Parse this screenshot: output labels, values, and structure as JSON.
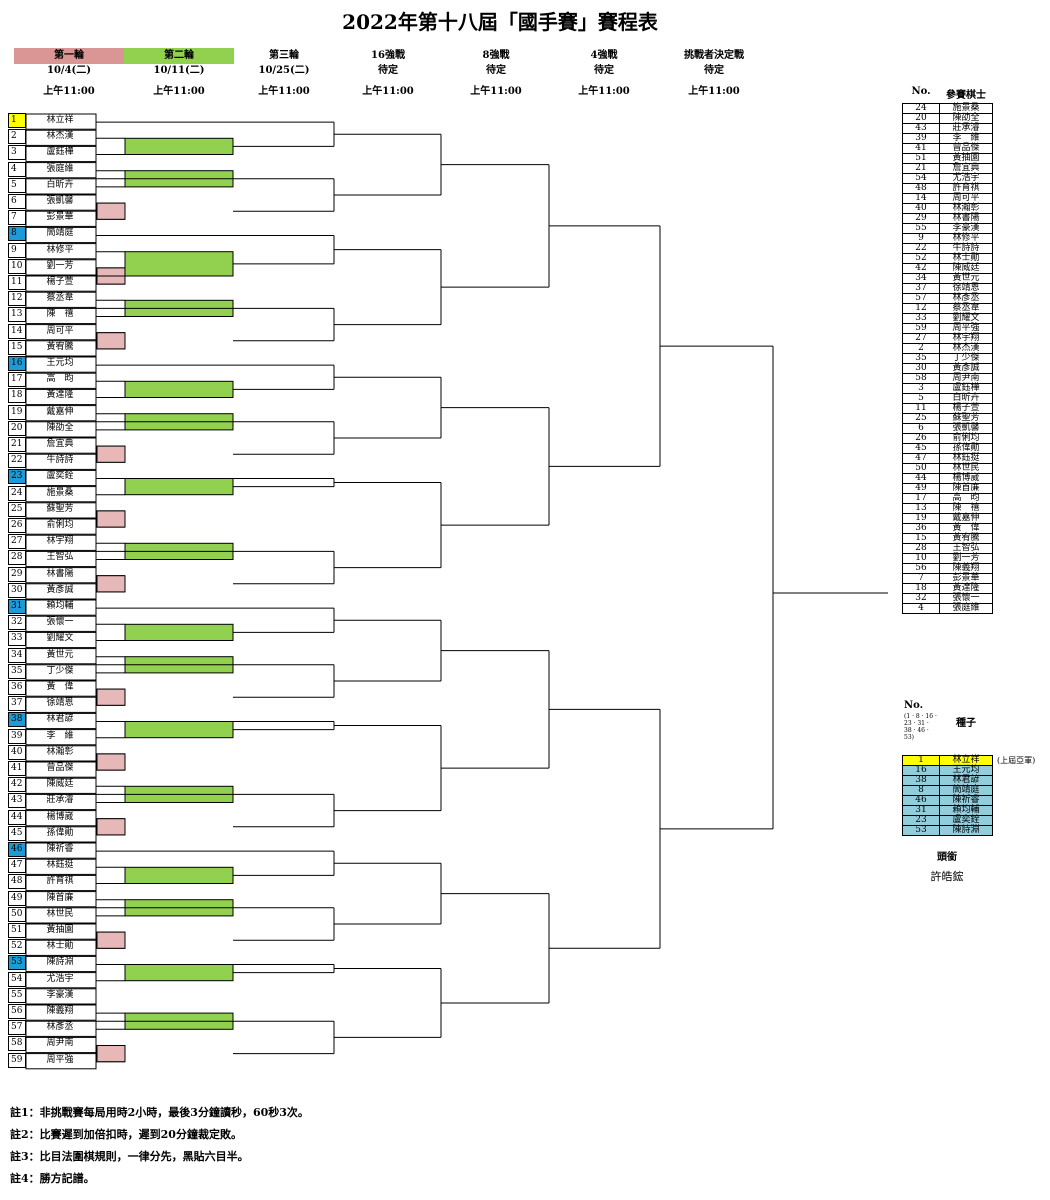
{
  "title": "2022年第十八屆「國手賽」賽程表",
  "rounds": [
    {
      "name": "第一輪",
      "date": "10/4(二)",
      "time": "上午11:00",
      "color": "#da9694"
    },
    {
      "name": "第二輪",
      "date": "10/11(二)",
      "time": "上午11:00",
      "color": "#92d050"
    },
    {
      "name": "第三輪",
      "date": "10/25(二)",
      "time": "上午11:00",
      "color": ""
    },
    {
      "name": "16強戰",
      "date": "待定",
      "time": "上午11:00",
      "color": ""
    },
    {
      "name": "8強戰",
      "date": "待定",
      "time": "上午11:00",
      "color": ""
    },
    {
      "name": "4強戰",
      "date": "待定",
      "time": "上午11:00",
      "color": ""
    },
    {
      "name": "挑戰者決定戰",
      "date": "待定",
      "time": "上午11:00",
      "color": ""
    }
  ],
  "bracket": [
    {
      "no": "1",
      "name": "林立祥",
      "seed": "gold"
    },
    {
      "no": "2",
      "name": "林杰漢"
    },
    {
      "no": "3",
      "name": "盧鈺樺"
    },
    {
      "no": "4",
      "name": "張庭維"
    },
    {
      "no": "5",
      "name": "白昕卉"
    },
    {
      "no": "6",
      "name": "張凱馨"
    },
    {
      "no": "7",
      "name": "彭景華"
    },
    {
      "no": "8",
      "name": "簡靖庭",
      "seed": "blue"
    },
    {
      "no": "9",
      "name": "林修平"
    },
    {
      "no": "10",
      "name": "劉一芳"
    },
    {
      "no": "11",
      "name": "楊子萱"
    },
    {
      "no": "12",
      "name": "蔡丞韋"
    },
    {
      "no": "13",
      "name": "陳　禧"
    },
    {
      "no": "14",
      "name": "周可平"
    },
    {
      "no": "15",
      "name": "黃宥騰"
    },
    {
      "no": "16",
      "name": "王元均",
      "seed": "blue"
    },
    {
      "no": "17",
      "name": "高　昀"
    },
    {
      "no": "18",
      "name": "黃達隆"
    },
    {
      "no": "19",
      "name": "戴嘉伸"
    },
    {
      "no": "20",
      "name": "陳劭全"
    },
    {
      "no": "21",
      "name": "詹宜典"
    },
    {
      "no": "22",
      "name": "牛詩詩"
    },
    {
      "no": "23",
      "name": "盧奕銓",
      "seed": "blue"
    },
    {
      "no": "24",
      "name": "施景桑"
    },
    {
      "no": "25",
      "name": "蘇聖芳"
    },
    {
      "no": "26",
      "name": "俞俐均"
    },
    {
      "no": "27",
      "name": "林宇翔"
    },
    {
      "no": "28",
      "name": "王智弘"
    },
    {
      "no": "29",
      "name": "林書陽"
    },
    {
      "no": "30",
      "name": "黃彥誠"
    },
    {
      "no": "31",
      "name": "賴均輔",
      "seed": "blue"
    },
    {
      "no": "32",
      "name": "張懷一"
    },
    {
      "no": "33",
      "name": "劉耀文"
    },
    {
      "no": "34",
      "name": "黃世元"
    },
    {
      "no": "35",
      "name": "丁少傑"
    },
    {
      "no": "36",
      "name": "黃　偉"
    },
    {
      "no": "37",
      "name": "徐靖恩"
    },
    {
      "no": "38",
      "name": "林君諺",
      "seed": "blue"
    },
    {
      "no": "39",
      "name": "李　維"
    },
    {
      "no": "40",
      "name": "林瀚彰"
    },
    {
      "no": "41",
      "name": "曾品傑"
    },
    {
      "no": "42",
      "name": "陳威廷"
    },
    {
      "no": "43",
      "name": "莊承濬"
    },
    {
      "no": "44",
      "name": "楊博崴"
    },
    {
      "no": "45",
      "name": "孫偉勛"
    },
    {
      "no": "46",
      "name": "陳祈睿",
      "seed": "blue"
    },
    {
      "no": "47",
      "name": "林鈺挺"
    },
    {
      "no": "48",
      "name": "許育祺"
    },
    {
      "no": "49",
      "name": "陳首廉"
    },
    {
      "no": "50",
      "name": "林世民"
    },
    {
      "no": "51",
      "name": "黃抽園"
    },
    {
      "no": "52",
      "name": "林士勛"
    },
    {
      "no": "53",
      "name": "陳詩淵",
      "seed": "blue"
    },
    {
      "no": "54",
      "name": "尤浩宇"
    },
    {
      "no": "55",
      "name": "李豪漢"
    },
    {
      "no": "56",
      "name": "陳義翔"
    },
    {
      "no": "57",
      "name": "林彥丞"
    },
    {
      "no": "58",
      "name": "周尹南"
    },
    {
      "no": "59",
      "name": "周平強"
    }
  ],
  "participants_header": {
    "no": "No.",
    "label": "參賽棋士"
  },
  "participants": [
    {
      "no": "24",
      "name": "施景桑"
    },
    {
      "no": "20",
      "name": "陳劭全"
    },
    {
      "no": "43",
      "name": "莊承濬"
    },
    {
      "no": "39",
      "name": "李　維"
    },
    {
      "no": "41",
      "name": "曾品傑"
    },
    {
      "no": "51",
      "name": "黃抽園"
    },
    {
      "no": "21",
      "name": "詹宜典"
    },
    {
      "no": "54",
      "name": "尤浩宇"
    },
    {
      "no": "48",
      "name": "許育祺"
    },
    {
      "no": "14",
      "name": "周可平"
    },
    {
      "no": "40",
      "name": "林瀚彰"
    },
    {
      "no": "29",
      "name": "林書陽"
    },
    {
      "no": "55",
      "name": "李豪漢"
    },
    {
      "no": "9",
      "name": "林修平"
    },
    {
      "no": "22",
      "name": "牛詩詩"
    },
    {
      "no": "52",
      "name": "林士勛"
    },
    {
      "no": "42",
      "name": "陳威廷"
    },
    {
      "no": "34",
      "name": "黃世元"
    },
    {
      "no": "37",
      "name": "徐靖恩"
    },
    {
      "no": "57",
      "name": "林彥丞"
    },
    {
      "no": "12",
      "name": "蔡丞韋"
    },
    {
      "no": "33",
      "name": "劉耀文"
    },
    {
      "no": "59",
      "name": "周平強"
    },
    {
      "no": "27",
      "name": "林宇翔"
    },
    {
      "no": "2",
      "name": "林杰漢"
    },
    {
      "no": "35",
      "name": "丁少傑"
    },
    {
      "no": "30",
      "name": "黃彥誠"
    },
    {
      "no": "58",
      "name": "周尹南"
    },
    {
      "no": "3",
      "name": "盧鈺樺"
    },
    {
      "no": "5",
      "name": "白昕卉"
    },
    {
      "no": "11",
      "name": "楊子萱"
    },
    {
      "no": "25",
      "name": "蘇聖芳"
    },
    {
      "no": "6",
      "name": "張凱馨"
    },
    {
      "no": "26",
      "name": "俞俐均"
    },
    {
      "no": "45",
      "name": "孫偉勛"
    },
    {
      "no": "47",
      "name": "林鈺挺"
    },
    {
      "no": "50",
      "name": "林世民"
    },
    {
      "no": "44",
      "name": "楊博崴"
    },
    {
      "no": "49",
      "name": "陳首廉"
    },
    {
      "no": "17",
      "name": "高　昀"
    },
    {
      "no": "13",
      "name": "陳　禧"
    },
    {
      "no": "19",
      "name": "戴嘉伸"
    },
    {
      "no": "36",
      "name": "黃　偉"
    },
    {
      "no": "15",
      "name": "黃宥騰"
    },
    {
      "no": "28",
      "name": "王智弘"
    },
    {
      "no": "10",
      "name": "劉一芳"
    },
    {
      "no": "56",
      "name": "陳義翔"
    },
    {
      "no": "7",
      "name": "彭景華"
    },
    {
      "no": "18",
      "name": "黃達隆"
    },
    {
      "no": "32",
      "name": "張懷一"
    },
    {
      "no": "4",
      "name": "張庭維"
    }
  ],
  "seeds_header": {
    "no": "No.",
    "no_note": "(1 · 8 · 16 · 23 · 31 · 38 · 46 · 53)",
    "label": "種子"
  },
  "seeds": [
    {
      "no": "1",
      "name": "林立祥",
      "note": "(上屆亞軍)",
      "color": "#ffff00"
    },
    {
      "no": "16",
      "name": "王元均",
      "color": "#92cddc"
    },
    {
      "no": "38",
      "name": "林君諺",
      "color": "#92cddc"
    },
    {
      "no": "8",
      "name": "簡靖庭",
      "color": "#92cddc"
    },
    {
      "no": "46",
      "name": "陳祈睿",
      "color": "#92cddc"
    },
    {
      "no": "31",
      "name": "賴均輔",
      "color": "#92cddc"
    },
    {
      "no": "23",
      "name": "盧奕銓",
      "color": "#92cddc"
    },
    {
      "no": "53",
      "name": "陳詩淵",
      "color": "#92cddc"
    }
  ],
  "champion": {
    "label": "頭銜",
    "name": "許皓鋐"
  },
  "notes": [
    "註1：非挑戰賽每局用時2小時，最後3分鐘讀秒，60秒3次。",
    "註2：比賽遲到加倍扣時，遲到20分鐘裁定敗。",
    "註3：比目法圍棋規則，一律分先，黑貼六目半。",
    "註4：勝方記譜。"
  ]
}
